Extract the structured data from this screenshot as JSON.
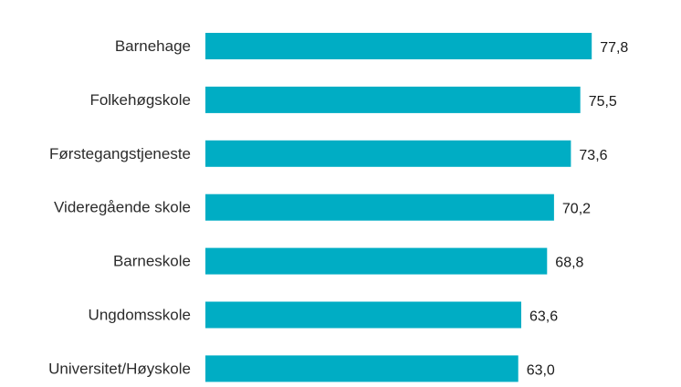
{
  "chart_data": {
    "type": "bar",
    "orientation": "horizontal",
    "categories": [
      "Barnehage",
      "Folkehøgskole",
      "Førstegangstjeneste",
      "Videregående skole",
      "Barneskole",
      "Ungdomsskole",
      "Universitet/Høyskole"
    ],
    "values": [
      77.8,
      75.5,
      73.6,
      70.2,
      68.8,
      63.6,
      63.0
    ],
    "value_labels": [
      "77,8",
      "75,5",
      "73,6",
      "70,2",
      "68,8",
      "63,6",
      "63,0"
    ],
    "xlim": [
      0,
      80
    ],
    "grid": false,
    "legend": "none",
    "bar_color": "#00adc4",
    "title": "",
    "xlabel": "",
    "ylabel": ""
  }
}
